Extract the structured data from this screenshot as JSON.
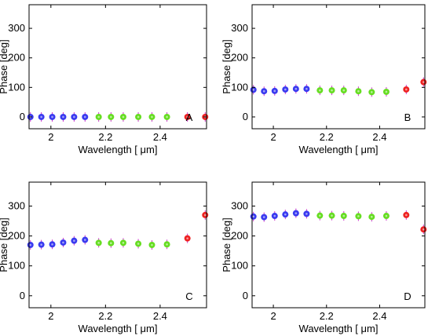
{
  "chart_data": [
    {
      "type": "scatter",
      "panel_label": "A",
      "xlabel": "Wavelength [ μm]",
      "ylabel": "Phase [deg]",
      "xlim": [
        1.92,
        2.57
      ],
      "ylim": [
        -40,
        380
      ],
      "xticks": [
        {
          "value": 2.0,
          "label": "2"
        },
        {
          "value": 2.2,
          "label": "2.2"
        },
        {
          "value": 2.4,
          "label": "2.4"
        }
      ],
      "yticks": [
        {
          "value": 0,
          "label": "0"
        },
        {
          "value": 100,
          "label": "100"
        },
        {
          "value": 200,
          "label": "200"
        },
        {
          "value": 300,
          "label": "300"
        }
      ],
      "series": [
        {
          "color": "#3a3af0",
          "marker": "filled-circle",
          "x": [
            1.925,
            1.965,
            2.005,
            2.045,
            2.085,
            2.125
          ],
          "y": [
            0,
            0,
            0,
            0,
            0,
            0
          ]
        },
        {
          "color": "#66dd22",
          "marker": "filled-circle",
          "x": [
            2.175,
            2.22,
            2.265,
            2.32,
            2.37,
            2.425
          ],
          "y": [
            0,
            0,
            0,
            0,
            0,
            0
          ]
        },
        {
          "color": "#ee2222",
          "marker": "filled-circle",
          "x": [
            2.5,
            2.565
          ],
          "y": [
            0,
            0
          ]
        }
      ]
    },
    {
      "type": "scatter",
      "panel_label": "B",
      "xlabel": "Wavelength [ μm]",
      "ylabel": "Phase [deg]",
      "xlim": [
        1.92,
        2.57
      ],
      "ylim": [
        -40,
        380
      ],
      "xticks": [
        {
          "value": 2.0,
          "label": "2"
        },
        {
          "value": 2.2,
          "label": "2.2"
        },
        {
          "value": 2.4,
          "label": "2.4"
        }
      ],
      "yticks": [
        {
          "value": 0,
          "label": "0"
        },
        {
          "value": 100,
          "label": "100"
        },
        {
          "value": 200,
          "label": "200"
        },
        {
          "value": 300,
          "label": "300"
        }
      ],
      "series": [
        {
          "color": "#3a3af0",
          "marker": "filled-circle",
          "x": [
            1.925,
            1.965,
            2.005,
            2.045,
            2.085,
            2.125
          ],
          "y": [
            92,
            87,
            88,
            93,
            95,
            95
          ]
        },
        {
          "color": "#66dd22",
          "marker": "filled-circle",
          "x": [
            2.175,
            2.22,
            2.265,
            2.32,
            2.37,
            2.425
          ],
          "y": [
            90,
            90,
            90,
            87,
            84,
            85
          ]
        },
        {
          "color": "#ee2222",
          "marker": "filled-circle",
          "x": [
            2.5,
            2.565
          ],
          "y": [
            93,
            118
          ]
        }
      ]
    },
    {
      "type": "scatter",
      "panel_label": "C",
      "xlabel": "Wavelength [ μm]",
      "ylabel": "Phase [deg]",
      "xlim": [
        1.92,
        2.57
      ],
      "ylim": [
        -40,
        380
      ],
      "xticks": [
        {
          "value": 2.0,
          "label": "2"
        },
        {
          "value": 2.2,
          "label": "2.2"
        },
        {
          "value": 2.4,
          "label": "2.4"
        }
      ],
      "yticks": [
        {
          "value": 0,
          "label": "0"
        },
        {
          "value": 100,
          "label": "100"
        },
        {
          "value": 200,
          "label": "200"
        },
        {
          "value": 300,
          "label": "300"
        }
      ],
      "series": [
        {
          "color": "#3a3af0",
          "marker": "filled-circle",
          "x": [
            1.925,
            1.965,
            2.005,
            2.045,
            2.085,
            2.125
          ],
          "y": [
            170,
            171,
            172,
            178,
            184,
            187
          ]
        },
        {
          "color": "#66dd22",
          "marker": "filled-circle",
          "x": [
            2.175,
            2.22,
            2.265,
            2.32,
            2.37,
            2.425
          ],
          "y": [
            177,
            176,
            177,
            174,
            170,
            172
          ]
        },
        {
          "color": "#ee2222",
          "marker": "filled-circle",
          "x": [
            2.5,
            2.565
          ],
          "y": [
            192,
            270
          ]
        }
      ]
    },
    {
      "type": "scatter",
      "panel_label": "D",
      "xlabel": "Wavelength [ μm]",
      "ylabel": "Phase [deg]",
      "xlim": [
        1.92,
        2.57
      ],
      "ylim": [
        -40,
        380
      ],
      "xticks": [
        {
          "value": 2.0,
          "label": "2"
        },
        {
          "value": 2.2,
          "label": "2.2"
        },
        {
          "value": 2.4,
          "label": "2.4"
        }
      ],
      "yticks": [
        {
          "value": 0,
          "label": "0"
        },
        {
          "value": 100,
          "label": "100"
        },
        {
          "value": 200,
          "label": "200"
        },
        {
          "value": 300,
          "label": "300"
        }
      ],
      "series": [
        {
          "color": "#3a3af0",
          "marker": "filled-circle",
          "x": [
            1.925,
            1.965,
            2.005,
            2.045,
            2.085,
            2.125
          ],
          "y": [
            265,
            263,
            267,
            272,
            276,
            274
          ]
        },
        {
          "color": "#66dd22",
          "marker": "filled-circle",
          "x": [
            2.175,
            2.22,
            2.265,
            2.32,
            2.37,
            2.425
          ],
          "y": [
            268,
            268,
            267,
            266,
            264,
            267
          ]
        },
        {
          "color": "#ee2222",
          "marker": "filled-circle",
          "x": [
            2.5,
            2.565
          ],
          "y": [
            270,
            222
          ]
        }
      ]
    }
  ]
}
